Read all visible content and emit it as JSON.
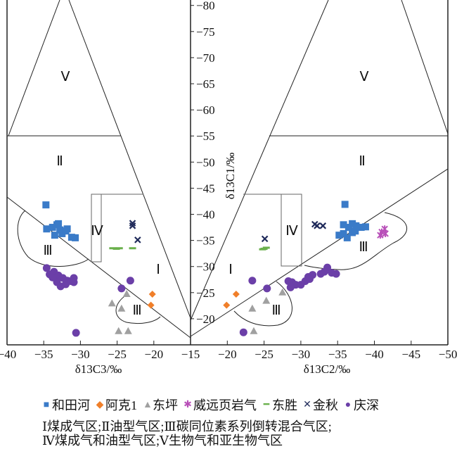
{
  "chart_data": {
    "type": "scatter",
    "y_axis": {
      "label": "δ13C1/‰",
      "range": [
        -15,
        -80
      ],
      "ticks": [
        "-20",
        "-25",
        "-30",
        "-35",
        "-40",
        "-45",
        "-50",
        "-55",
        "-60",
        "-65",
        "-70",
        "-75",
        "-80"
      ]
    },
    "panels": [
      {
        "name": "left",
        "xlabel": "δ13C3/‰",
        "xlim": [
          -40,
          -15
        ],
        "ticks": [
          "-40",
          "-35",
          "-30",
          "-25",
          "-20",
          "-15"
        ],
        "regions": [
          {
            "label": "Ⅴ",
            "region": "V"
          },
          {
            "label": "Ⅱ",
            "region": "II"
          },
          {
            "label": "Ⅳ",
            "region": "IV"
          },
          {
            "label": "Ⅲ",
            "region": "III-upper"
          },
          {
            "label": "Ⅰ",
            "region": "I"
          },
          {
            "label": "Ⅲ",
            "region": "III-lower"
          }
        ]
      },
      {
        "name": "right",
        "xlabel": "δ13C2/‰",
        "xlim": [
          -15,
          -50
        ],
        "ticks": [
          "-20",
          "-25",
          "-30",
          "-35",
          "-40",
          "-45",
          "-50"
        ],
        "regions": [
          {
            "label": "Ⅴ",
            "region": "V"
          },
          {
            "label": "Ⅱ",
            "region": "II"
          },
          {
            "label": "Ⅳ",
            "region": "IV"
          },
          {
            "label": "Ⅲ",
            "region": "III-upper"
          },
          {
            "label": "Ⅰ",
            "region": "I"
          },
          {
            "label": "Ⅲ",
            "region": "III-lower"
          }
        ]
      }
    ],
    "series": [
      {
        "name": "和田河",
        "marker": "square",
        "color": "#3a7bc8",
        "left": [
          [
            -34.7,
            -41.8
          ],
          [
            -34.6,
            -37.2
          ],
          [
            -33.8,
            -37.5
          ],
          [
            -33.2,
            -38.0
          ],
          [
            -32.8,
            -37.0
          ],
          [
            -32.5,
            -36.3
          ],
          [
            -33.5,
            -36.0
          ],
          [
            -31.8,
            -37.2
          ],
          [
            -31.2,
            -35.6
          ],
          [
            -30.7,
            -35.5
          ],
          [
            -32.0,
            -36.8
          ],
          [
            -33.0,
            -38.2
          ]
        ],
        "right": [
          [
            -36.0,
            -41.9
          ],
          [
            -35.2,
            -36.0
          ],
          [
            -35.8,
            -36.3
          ],
          [
            -36.5,
            -37.5
          ],
          [
            -35.8,
            -38.0
          ],
          [
            -37.0,
            -38.2
          ],
          [
            -37.5,
            -37.8
          ],
          [
            -38.2,
            -37.5
          ],
          [
            -37.0,
            -36.5
          ],
          [
            -38.8,
            -37.6
          ],
          [
            -36.3,
            -35.5
          ],
          [
            -37.4,
            -36.8
          ]
        ]
      },
      {
        "name": "阿克1",
        "marker": "diamond",
        "color": "#f07f2a",
        "left": [
          [
            -20.2,
            -24.7
          ],
          [
            -20.4,
            -22.6
          ]
        ],
        "right": [
          [
            -21.2,
            -24.7
          ],
          [
            -19.9,
            -22.6
          ]
        ]
      },
      {
        "name": "东坪",
        "marker": "triangle",
        "color": "#a0a0a0",
        "left": [
          [
            -25.7,
            -22.9
          ],
          [
            -24.4,
            -21.9
          ],
          [
            -23.7,
            -24.7
          ],
          [
            -24.8,
            -17.6
          ],
          [
            -23.5,
            -17.6
          ]
        ],
        "right": [
          [
            -23.4,
            -21.9
          ],
          [
            -25.3,
            -23.4
          ],
          [
            -27.5,
            -25.0
          ],
          [
            -23.6,
            -17.6
          ]
        ]
      },
      {
        "name": "威远页岩气",
        "marker": "star",
        "color": "#b84fb8",
        "left": [],
        "right": [
          [
            -41.0,
            -36.6
          ],
          [
            -41.4,
            -37.2
          ],
          [
            -40.8,
            -36.0
          ],
          [
            -41.5,
            -36.3
          ]
        ]
      },
      {
        "name": "东胜",
        "marker": "dash",
        "color": "#6ab04c",
        "left": [
          [
            -25.6,
            -33.5
          ],
          [
            -25.1,
            -33.4
          ],
          [
            -24.7,
            -33.5
          ],
          [
            -22.9,
            -33.5
          ]
        ],
        "right": [
          [
            -25.0,
            -33.4
          ],
          [
            -25.3,
            -33.6
          ],
          [
            -24.8,
            -33.3
          ]
        ]
      },
      {
        "name": "金秋",
        "marker": "cross",
        "color": "#1f2a5a",
        "left": [
          [
            -22.9,
            -37.8
          ],
          [
            -22.9,
            -38.3
          ],
          [
            -22.2,
            -35.1
          ]
        ],
        "right": [
          [
            -31.9,
            -38.1
          ],
          [
            -32.2,
            -37.8
          ],
          [
            -33.0,
            -37.8
          ],
          [
            -25.1,
            -35.3
          ]
        ]
      },
      {
        "name": "庆深",
        "marker": "circle",
        "color": "#6b3fa8",
        "left": [
          [
            -34.6,
            -29.7
          ],
          [
            -34.2,
            -28.5
          ],
          [
            -33.6,
            -29.0
          ],
          [
            -33.0,
            -28.3
          ],
          [
            -32.4,
            -27.8
          ],
          [
            -31.8,
            -27.3
          ],
          [
            -33.2,
            -27.0
          ],
          [
            -32.7,
            -26.2
          ],
          [
            -32.0,
            -26.6
          ],
          [
            -31.3,
            -27.2
          ],
          [
            -30.9,
            -27.8
          ],
          [
            -30.9,
            -27.0
          ],
          [
            -33.8,
            -27.9
          ],
          [
            -23.2,
            -27.3
          ],
          [
            -24.4,
            -25.8
          ],
          [
            -30.6,
            -17.3
          ]
        ],
        "right": [
          [
            -28.3,
            -27.2
          ],
          [
            -28.8,
            -27.0
          ],
          [
            -29.3,
            -26.5
          ],
          [
            -28.6,
            -26.0
          ],
          [
            -30.0,
            -26.5
          ],
          [
            -30.6,
            -27.2
          ],
          [
            -31.0,
            -28.0
          ],
          [
            -31.6,
            -28.4
          ],
          [
            -31.2,
            -27.6
          ],
          [
            -32.7,
            -28.6
          ],
          [
            -33.2,
            -29.0
          ],
          [
            -33.6,
            -29.8
          ],
          [
            -34.2,
            -28.8
          ],
          [
            -34.8,
            -28.6
          ],
          [
            -23.4,
            -27.3
          ],
          [
            -25.4,
            -25.8
          ],
          [
            -22.2,
            -17.4
          ]
        ]
      }
    ],
    "legend_placement": "bottom",
    "notes": [
      "Ⅰ煤成气区;Ⅱ油型气区;Ⅲ碳同位素系列倒转混合气区;",
      "Ⅳ煤成气和油型气区;Ⅴ生物气和亚生物气区"
    ]
  }
}
